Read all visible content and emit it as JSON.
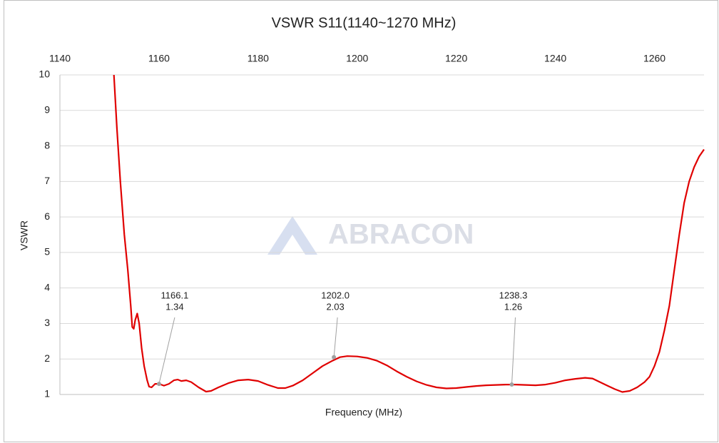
{
  "chart_data": {
    "type": "line",
    "title": "VSWR S11(1140~1270 MHz)",
    "x_label": "Frequency (MHz)",
    "y_label": "VSWR",
    "watermark": "ABRACON",
    "xlim": [
      1140,
      1270
    ],
    "xticks": [
      1140,
      1160,
      1180,
      1200,
      1220,
      1240,
      1260
    ],
    "x_axis_position": "top",
    "ylim": [
      1,
      10
    ],
    "yticks": [
      1,
      2,
      3,
      4,
      5,
      6,
      7,
      8,
      9,
      10
    ],
    "grid": true,
    "series": [
      {
        "name": "S11",
        "color": "#e00000",
        "x": [
          1150.9,
          1151.5,
          1152.2,
          1153,
          1153.7,
          1154.3,
          1154.6,
          1154.9,
          1155.2,
          1155.6,
          1156,
          1156.5,
          1157,
          1157.6,
          1158,
          1158.5,
          1159.2,
          1160,
          1161,
          1162,
          1163,
          1163.8,
          1164.5,
          1165.5,
          1166.5,
          1168,
          1169.5,
          1170.5,
          1172,
          1174,
          1176,
          1178,
          1180,
          1182,
          1184,
          1185.5,
          1187,
          1189,
          1191,
          1193,
          1195,
          1196.5,
          1198,
          1200,
          1202,
          1204,
          1206,
          1208,
          1210,
          1212,
          1214,
          1216,
          1218,
          1220,
          1222,
          1224,
          1226,
          1228,
          1230,
          1232,
          1234,
          1236,
          1238,
          1240,
          1242,
          1244,
          1246,
          1247.5,
          1249,
          1250.5,
          1252,
          1253.5,
          1255,
          1256.5,
          1258,
          1259,
          1260,
          1261,
          1262,
          1263,
          1264,
          1265,
          1266,
          1267,
          1268,
          1269,
          1270
        ],
        "values": [
          10,
          8.5,
          7,
          5.5,
          4.5,
          3.5,
          2.9,
          2.85,
          3.1,
          3.28,
          3.0,
          2.3,
          1.8,
          1.4,
          1.22,
          1.2,
          1.3,
          1.3,
          1.25,
          1.3,
          1.4,
          1.42,
          1.38,
          1.4,
          1.35,
          1.2,
          1.08,
          1.1,
          1.2,
          1.32,
          1.4,
          1.42,
          1.38,
          1.27,
          1.18,
          1.18,
          1.25,
          1.4,
          1.6,
          1.8,
          1.95,
          2.05,
          2.08,
          2.07,
          2.03,
          1.95,
          1.82,
          1.65,
          1.5,
          1.37,
          1.27,
          1.2,
          1.17,
          1.18,
          1.21,
          1.24,
          1.26,
          1.27,
          1.28,
          1.28,
          1.27,
          1.26,
          1.28,
          1.33,
          1.4,
          1.44,
          1.47,
          1.45,
          1.35,
          1.25,
          1.15,
          1.07,
          1.1,
          1.2,
          1.35,
          1.5,
          1.8,
          2.2,
          2.8,
          3.5,
          4.5,
          5.5,
          6.4,
          7.0,
          7.4,
          7.7,
          7.9
        ]
      }
    ],
    "annotations": [
      {
        "at": [
          1160,
          1.3
        ],
        "text": [
          "1166.1",
          "1.34"
        ]
      },
      {
        "at": [
          1195.3,
          2.05
        ],
        "text": [
          "1202.0",
          "2.03"
        ]
      },
      {
        "at": [
          1231.2,
          1.28
        ],
        "text": [
          "1238.3",
          "1.26"
        ]
      }
    ]
  }
}
